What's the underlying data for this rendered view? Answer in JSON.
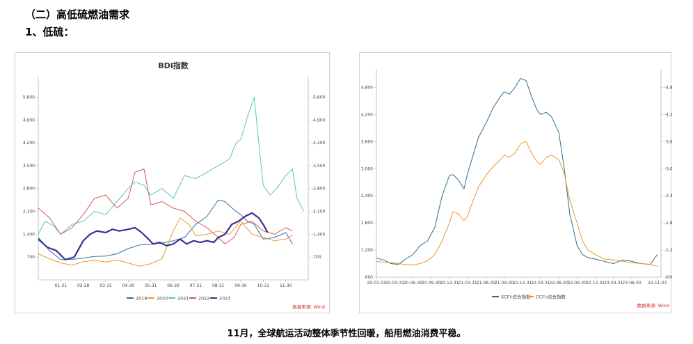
{
  "header": {
    "section_title": "（二）高低硫燃油需求",
    "sub_title": "1、低硫："
  },
  "caption": "11月，全球航运活动整体季节性回暖，船用燃油消费平稳。",
  "chart_data": [
    {
      "type": "line",
      "title": "BDI指数",
      "source": "数据来源: Wind",
      "legend_position": "bottom",
      "x_ticks": [
        "01-31",
        "02-28",
        "03-31",
        "04-30",
        "05-31",
        "06-30",
        "07-31",
        "08-31",
        "09-30",
        "10-31",
        "11-30"
      ],
      "y_ticks": [
        "700",
        "1,400",
        "2,100",
        "2,800",
        "3,500",
        "4,200",
        "4,900",
        "5,600"
      ],
      "y_tick_values": [
        700,
        1400,
        2100,
        2800,
        3500,
        4200,
        4900,
        5600
      ],
      "ylim": [
        0,
        6100
      ],
      "x_range_months": [
        0,
        12
      ],
      "series": [
        {
          "name": "2019",
          "color": "#2f6fa3",
          "width": 1.0,
          "x": [
            0,
            0.5,
            1,
            1.5,
            2,
            2.5,
            3,
            3.5,
            4,
            4.5,
            5,
            5.5,
            6,
            6.5,
            7,
            7.5,
            8,
            8.3,
            8.7,
            9,
            9.3,
            9.6,
            10,
            10.5,
            11,
            11.3
          ],
          "y": [
            1300,
            900,
            620,
            630,
            670,
            720,
            730,
            800,
            960,
            1070,
            1090,
            1130,
            1200,
            1300,
            1700,
            1950,
            2450,
            2400,
            2150,
            2000,
            1800,
            1700,
            1250,
            1300,
            1450,
            1100
          ]
        },
        {
          "name": "2020",
          "color": "#f0952b",
          "width": 1.0,
          "x": [
            0,
            0.5,
            1,
            1.5,
            2,
            2.5,
            3,
            3.5,
            4,
            4.5,
            5,
            5.5,
            6,
            6.3,
            6.7,
            7,
            7.5,
            8,
            8.5,
            9,
            9.5,
            10,
            10.5,
            11,
            11.3
          ],
          "y": [
            800,
            650,
            520,
            450,
            560,
            600,
            550,
            610,
            520,
            420,
            500,
            650,
            1500,
            1900,
            1700,
            1350,
            1400,
            1500,
            1400,
            1800,
            1400,
            1300,
            1200,
            1250,
            1380
          ]
        },
        {
          "name": "2021",
          "color": "#5cc3b7",
          "width": 1.0,
          "x": [
            0,
            0.3,
            0.7,
            1,
            1.5,
            2,
            2.5,
            3,
            3.5,
            4,
            4.3,
            4.7,
            5,
            5.5,
            6,
            6.5,
            7,
            7.5,
            8,
            8.5,
            8.8,
            9,
            9.3,
            9.6,
            9.8,
            10,
            10.3,
            10.6,
            11,
            11.3,
            11.5,
            11.8
          ],
          "y": [
            1400,
            1800,
            1650,
            1400,
            1700,
            1800,
            2100,
            2000,
            2400,
            2800,
            3000,
            2900,
            2600,
            2800,
            2500,
            3200,
            3100,
            3300,
            3500,
            3700,
            4200,
            4300,
            5000,
            5600,
            4200,
            2900,
            2600,
            2800,
            3200,
            3400,
            2500,
            2100
          ]
        },
        {
          "name": "2022",
          "color": "#d8564f",
          "width": 1.0,
          "x": [
            0,
            0.5,
            1,
            1.5,
            2,
            2.5,
            3,
            3.5,
            4,
            4.3,
            4.7,
            5,
            5.5,
            6,
            6.5,
            7,
            7.5,
            8,
            8.3,
            8.7,
            9,
            9.5,
            10,
            10.5,
            11,
            11.3
          ],
          "y": [
            2200,
            1900,
            1400,
            1600,
            2000,
            2500,
            2600,
            2200,
            2500,
            3300,
            3400,
            2300,
            2400,
            2200,
            2100,
            1800,
            1600,
            1300,
            1100,
            1300,
            1700,
            1800,
            1500,
            1400,
            1600,
            1500
          ]
        },
        {
          "name": "2023",
          "color": "#3b2f8f",
          "width": 2.2,
          "x": [
            0,
            0.4,
            0.8,
            1.2,
            1.6,
            2,
            2.3,
            2.6,
            3,
            3.3,
            3.6,
            4,
            4.3,
            4.6,
            4.9,
            5.1,
            5.4,
            5.7,
            6,
            6.3,
            6.6,
            6.9,
            7.2,
            7.5,
            7.8,
            8,
            8.3,
            8.6,
            8.9,
            9.2,
            9.5,
            9.8,
            10,
            10.2
          ],
          "y": [
            1250,
            1000,
            900,
            620,
            700,
            1200,
            1400,
            1500,
            1450,
            1550,
            1500,
            1550,
            1600,
            1450,
            1250,
            1100,
            1150,
            1050,
            1100,
            1250,
            1100,
            1200,
            1150,
            1200,
            1150,
            1300,
            1400,
            1700,
            1800,
            1950,
            2050,
            1900,
            1700,
            1450
          ]
        }
      ]
    },
    {
      "type": "line",
      "title": "",
      "source": "数据来源: Wind",
      "legend_position": "bottom",
      "x_ticks": [
        "20-01-03",
        "20-03-31",
        "20-06-30",
        "20-09-30",
        "20-12-31",
        "21-03-31",
        "21-06-30",
        "21-09-30",
        "21-12-31",
        "22-03-31",
        "22-06-30",
        "22-09-30",
        "22-12-31",
        "23-03-31",
        "23-06-30",
        "23-11-03"
      ],
      "x_tick_positions_quarters": [
        0,
        1,
        2,
        3,
        4,
        5,
        6,
        7,
        8,
        9,
        10,
        11,
        12,
        13,
        14,
        15.4
      ],
      "y_ticks": [
        "600",
        "1,200",
        "1,800",
        "2,400",
        "3,000",
        "3,600",
        "4,200",
        "4,800"
      ],
      "y_tick_values": [
        600,
        1200,
        1800,
        2400,
        3000,
        3600,
        4200,
        4800
      ],
      "ylim": [
        600,
        5100
      ],
      "series": [
        {
          "name": "SCFI:综合指数",
          "color": "#2c6e91",
          "width": 1.0,
          "x": [
            0,
            0.4,
            0.8,
            1.2,
            1.6,
            2,
            2.4,
            2.8,
            3.2,
            3.6,
            4,
            4.2,
            4.5,
            4.8,
            5,
            5.3,
            5.6,
            6,
            6.4,
            6.8,
            7,
            7.3,
            7.6,
            7.9,
            8.2,
            8.5,
            8.8,
            9,
            9.3,
            9.6,
            10,
            10.3,
            10.6,
            11,
            11.3,
            11.6,
            12,
            12.5,
            13,
            13.5,
            14,
            14.5,
            15,
            15.4
          ],
          "y": [
            1020,
            980,
            900,
            880,
            1000,
            1100,
            1300,
            1400,
            1700,
            2400,
            2850,
            2870,
            2750,
            2550,
            2900,
            3300,
            3700,
            4000,
            4350,
            4600,
            4700,
            4650,
            4800,
            5000,
            4950,
            4600,
            4300,
            4200,
            4250,
            4150,
            3800,
            3000,
            2000,
            1300,
            1100,
            1030,
            1000,
            950,
            900,
            980,
            950,
            900,
            880,
            1100
          ]
        },
        {
          "name": "CCFI:综合指数",
          "color": "#f0952b",
          "width": 1.0,
          "x": [
            0,
            0.4,
            0.8,
            1.2,
            1.6,
            2,
            2.4,
            2.8,
            3.2,
            3.6,
            4,
            4.2,
            4.5,
            4.8,
            5,
            5.3,
            5.6,
            6,
            6.4,
            6.8,
            7,
            7.3,
            7.6,
            7.9,
            8.2,
            8.5,
            8.8,
            9,
            9.3,
            9.6,
            10,
            10.3,
            10.6,
            11,
            11.3,
            11.6,
            12,
            12.5,
            13,
            13.5,
            14,
            14.5,
            15,
            15.4
          ],
          "y": [
            950,
            930,
            920,
            900,
            880,
            870,
            900,
            960,
            1100,
            1400,
            1800,
            2050,
            2000,
            1850,
            1950,
            2300,
            2600,
            2850,
            3050,
            3200,
            3300,
            3250,
            3350,
            3550,
            3600,
            3350,
            3150,
            3100,
            3250,
            3300,
            3200,
            2900,
            2300,
            1800,
            1400,
            1200,
            1100,
            1000,
            980,
            950,
            920,
            900,
            880,
            840
          ]
        }
      ]
    }
  ]
}
